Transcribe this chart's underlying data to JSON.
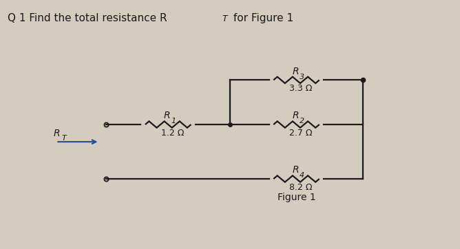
{
  "title": "Q 1 Find the total resistance R",
  "title_sub": "T",
  "title_rest": " for Figure 1",
  "figure_label": "Figure 1",
  "bg_color": "#d3ccbf",
  "line_color": "#1a1a1a",
  "R1_label": "R",
  "R1_sub": "1",
  "R1_val": "1.2 Ω",
  "R2_label": "R",
  "R2_sub": "2",
  "R2_val": "2.7 Ω",
  "R3_label": "R",
  "R3_sub": "3",
  "R3_val": "3.3 Ω",
  "R4_label": "R",
  "R4_sub": "4",
  "R4_val": "8.2 Ω",
  "RT_label": "R",
  "RT_sub": "T",
  "arrow_color": "#1e4d99",
  "lw": 1.6,
  "fs_label": 10,
  "fs_val": 9,
  "fs_title": 11
}
